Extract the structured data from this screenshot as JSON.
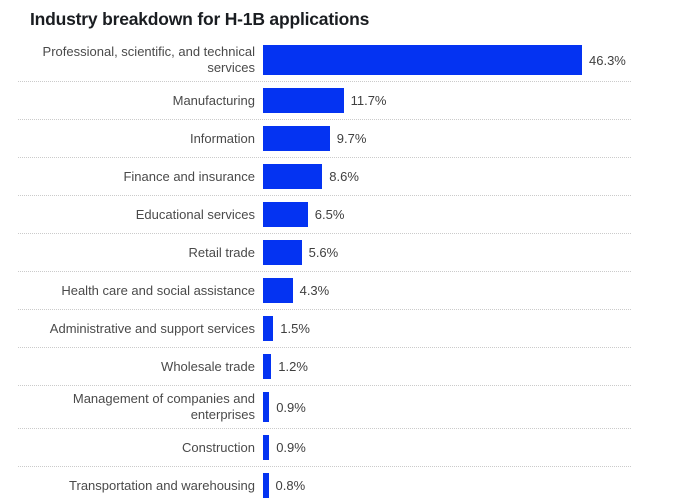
{
  "title": "Industry breakdown for H-1B applications",
  "colors": {
    "bar": "#0433f2",
    "title_text": "#1a1d21",
    "label_text": "#4a4a4a",
    "value_text": "#3f3f3f",
    "separator": "#cbcbcb",
    "background": "#ffffff"
  },
  "chart_data": {
    "type": "bar",
    "orientation": "horizontal",
    "title": "Industry breakdown for H-1B applications",
    "xlabel": "",
    "ylabel": "",
    "value_suffix": "%",
    "xlim": [
      0,
      52
    ],
    "grid": false,
    "legend": false,
    "categories": [
      "Professional, scientific, and technical services",
      "Manufacturing",
      "Information",
      "Finance and insurance",
      "Educational services",
      "Retail trade",
      "Health care and social assistance",
      "Administrative and support services",
      "Wholesale trade",
      "Management of companies and enterprises",
      "Construction",
      "Transportation and warehousing"
    ],
    "values": [
      46.3,
      11.7,
      9.7,
      8.6,
      6.5,
      5.6,
      4.3,
      1.5,
      1.2,
      0.9,
      0.9,
      0.8
    ],
    "value_labels": [
      "46.3%",
      "11.7%",
      "9.7%",
      "8.6%",
      "6.5%",
      "5.6%",
      "4.3%",
      "1.5%",
      "1.2%",
      "0.9%",
      "0.9%",
      "0.8%"
    ]
  }
}
